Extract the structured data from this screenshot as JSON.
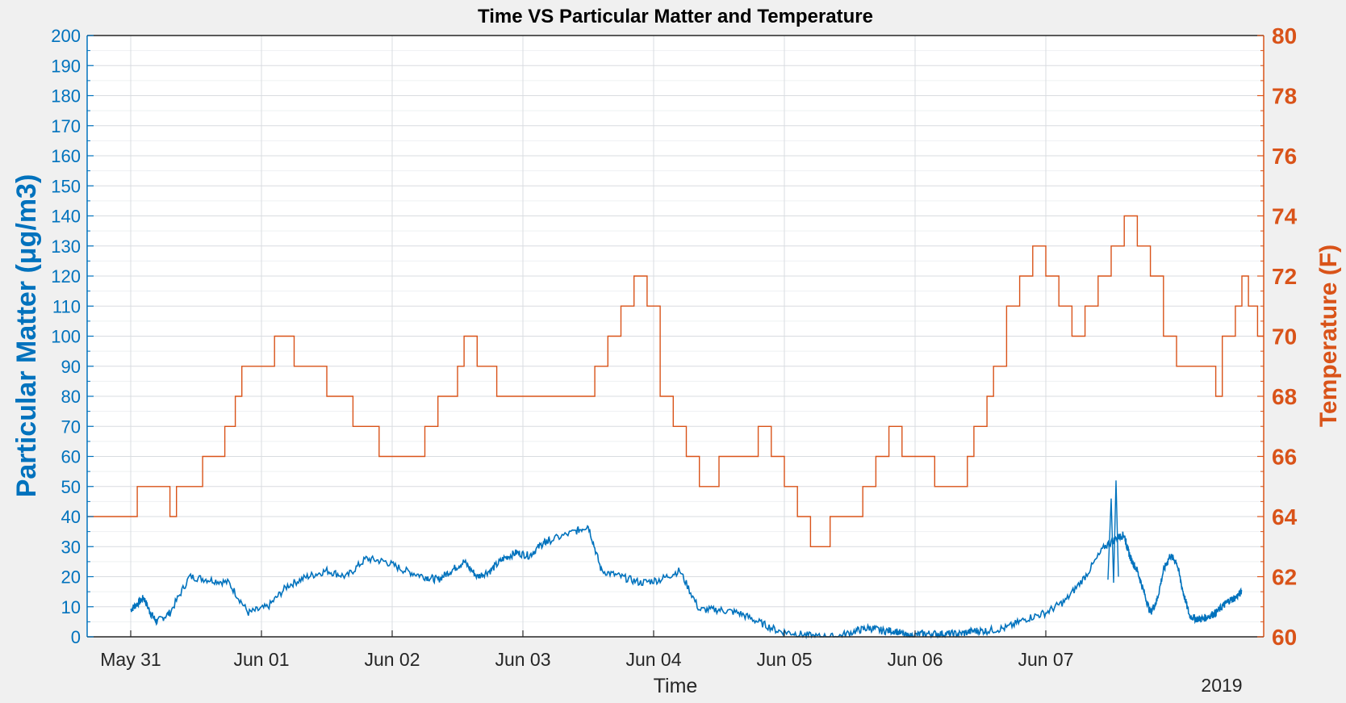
{
  "chart_data": {
    "type": "line",
    "title": "Time VS Particular Matter and Temperature",
    "xlabel": "Time",
    "x_ticks": [
      "May 31",
      "Jun 01",
      "Jun 02",
      "Jun 03",
      "Jun 04",
      "Jun 05",
      "Jun 06",
      "Jun 07"
    ],
    "x_secondary_label": "2019",
    "xlim": [
      "2019-05-30 16:00",
      "2019-06-08 04:00"
    ],
    "grid": true,
    "colors": {
      "pm": "#0072bd",
      "temp": "#d95319",
      "grid": "#d9dce0",
      "axes_bg": "#ffffff",
      "figure_bg": "#f0f0f0"
    },
    "y_left": {
      "label": "Particular Matter (μg/m3)",
      "ylim": [
        0,
        200
      ],
      "ticks": [
        "0",
        "10",
        "20",
        "30",
        "40",
        "50",
        "60",
        "70",
        "80",
        "90",
        "100",
        "110",
        "120",
        "130",
        "140",
        "150",
        "160",
        "170",
        "180",
        "190",
        "200"
      ]
    },
    "y_right": {
      "label": "Temperature (F)",
      "ylim": [
        60,
        80
      ],
      "ticks": [
        "60",
        "62",
        "64",
        "66",
        "68",
        "70",
        "72",
        "74",
        "76",
        "78",
        "80"
      ]
    },
    "series": [
      {
        "axis": "left",
        "x_days": [
          0.0,
          0.05,
          0.1,
          0.15,
          0.2,
          0.3,
          0.45,
          0.6,
          0.75,
          0.9,
          1.05,
          1.2,
          1.35,
          1.5,
          1.65,
          1.8,
          1.95,
          2.1,
          2.25,
          2.35,
          2.45,
          2.55,
          2.65,
          2.75,
          2.85,
          2.95,
          3.05,
          3.15,
          3.2,
          3.4,
          3.5,
          3.6,
          3.75,
          3.9,
          4.05,
          4.2,
          4.35,
          4.5,
          4.65,
          4.8,
          4.95,
          5.1,
          5.25,
          5.4,
          5.55,
          5.65,
          5.75,
          5.85,
          5.95,
          6.05,
          6.15,
          6.25,
          6.35,
          6.45,
          6.55,
          6.7,
          6.85,
          7.0,
          7.15,
          7.3,
          7.45,
          7.55,
          7.6,
          7.62,
          7.65,
          7.7,
          7.75,
          7.8,
          7.85,
          7.9,
          7.95,
          8.0,
          8.05,
          8.1,
          8.15,
          8.2,
          8.25,
          8.3,
          8.35,
          8.4,
          8.45,
          8.5
        ],
        "values": [
          9,
          11,
          13,
          8,
          5,
          8,
          20,
          19,
          18,
          8,
          10,
          17,
          20,
          22,
          20,
          26,
          25,
          22,
          20,
          19,
          22,
          25,
          20,
          22,
          26,
          28,
          27,
          31,
          32,
          35,
          37,
          22,
          20,
          18,
          19,
          22,
          9,
          9,
          8,
          5,
          2,
          1,
          0,
          0,
          2,
          3,
          2,
          2,
          0,
          1,
          1,
          1,
          1,
          2,
          2,
          3,
          6,
          8,
          12,
          20,
          30,
          33,
          34,
          30,
          26,
          22,
          15,
          8,
          12,
          22,
          27,
          25,
          15,
          7,
          6,
          6,
          7,
          8,
          10,
          12,
          13,
          15
        ]
      }
    ]
  }
}
